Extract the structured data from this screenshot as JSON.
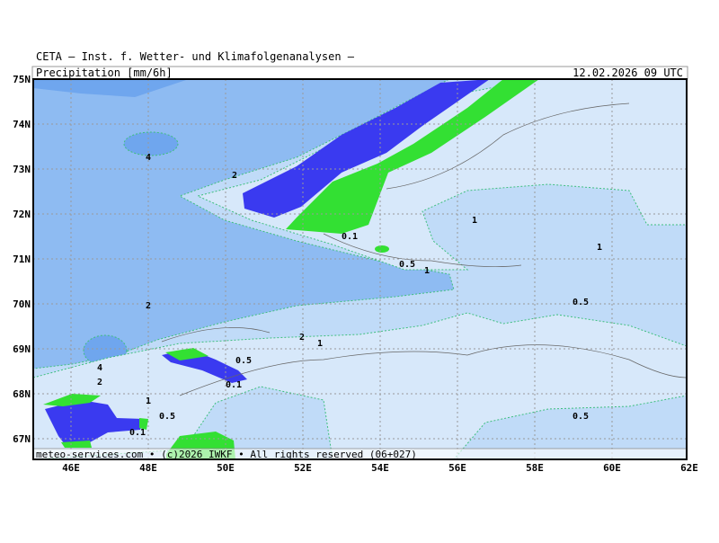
{
  "header": {
    "title": "CETA — Inst. f. Wetter- und Klimafolgenanalysen —",
    "product": "Precipitation [mm/6h]",
    "valid_time": "12.02.2026 09 UTC"
  },
  "footer": "meteo-services.com • (c)2026 IWKF • All rights reserved (06+027)",
  "axes": {
    "lat_labels": [
      "75N",
      "74N",
      "73N",
      "72N",
      "71N",
      "70N",
      "69N",
      "68N",
      "67N"
    ],
    "lon_labels": [
      "46E",
      "48E",
      "50E",
      "52E",
      "54E",
      "56E",
      "58E",
      "60E",
      "62E"
    ]
  },
  "contour_labels": [
    "4",
    "2",
    "1",
    "0.1",
    "1",
    "0.5",
    "1",
    "2",
    "0.5",
    "2",
    "1",
    "0.5",
    "4",
    "2",
    "0.1",
    "1",
    "0.5",
    "0.5",
    "0.1"
  ]
}
